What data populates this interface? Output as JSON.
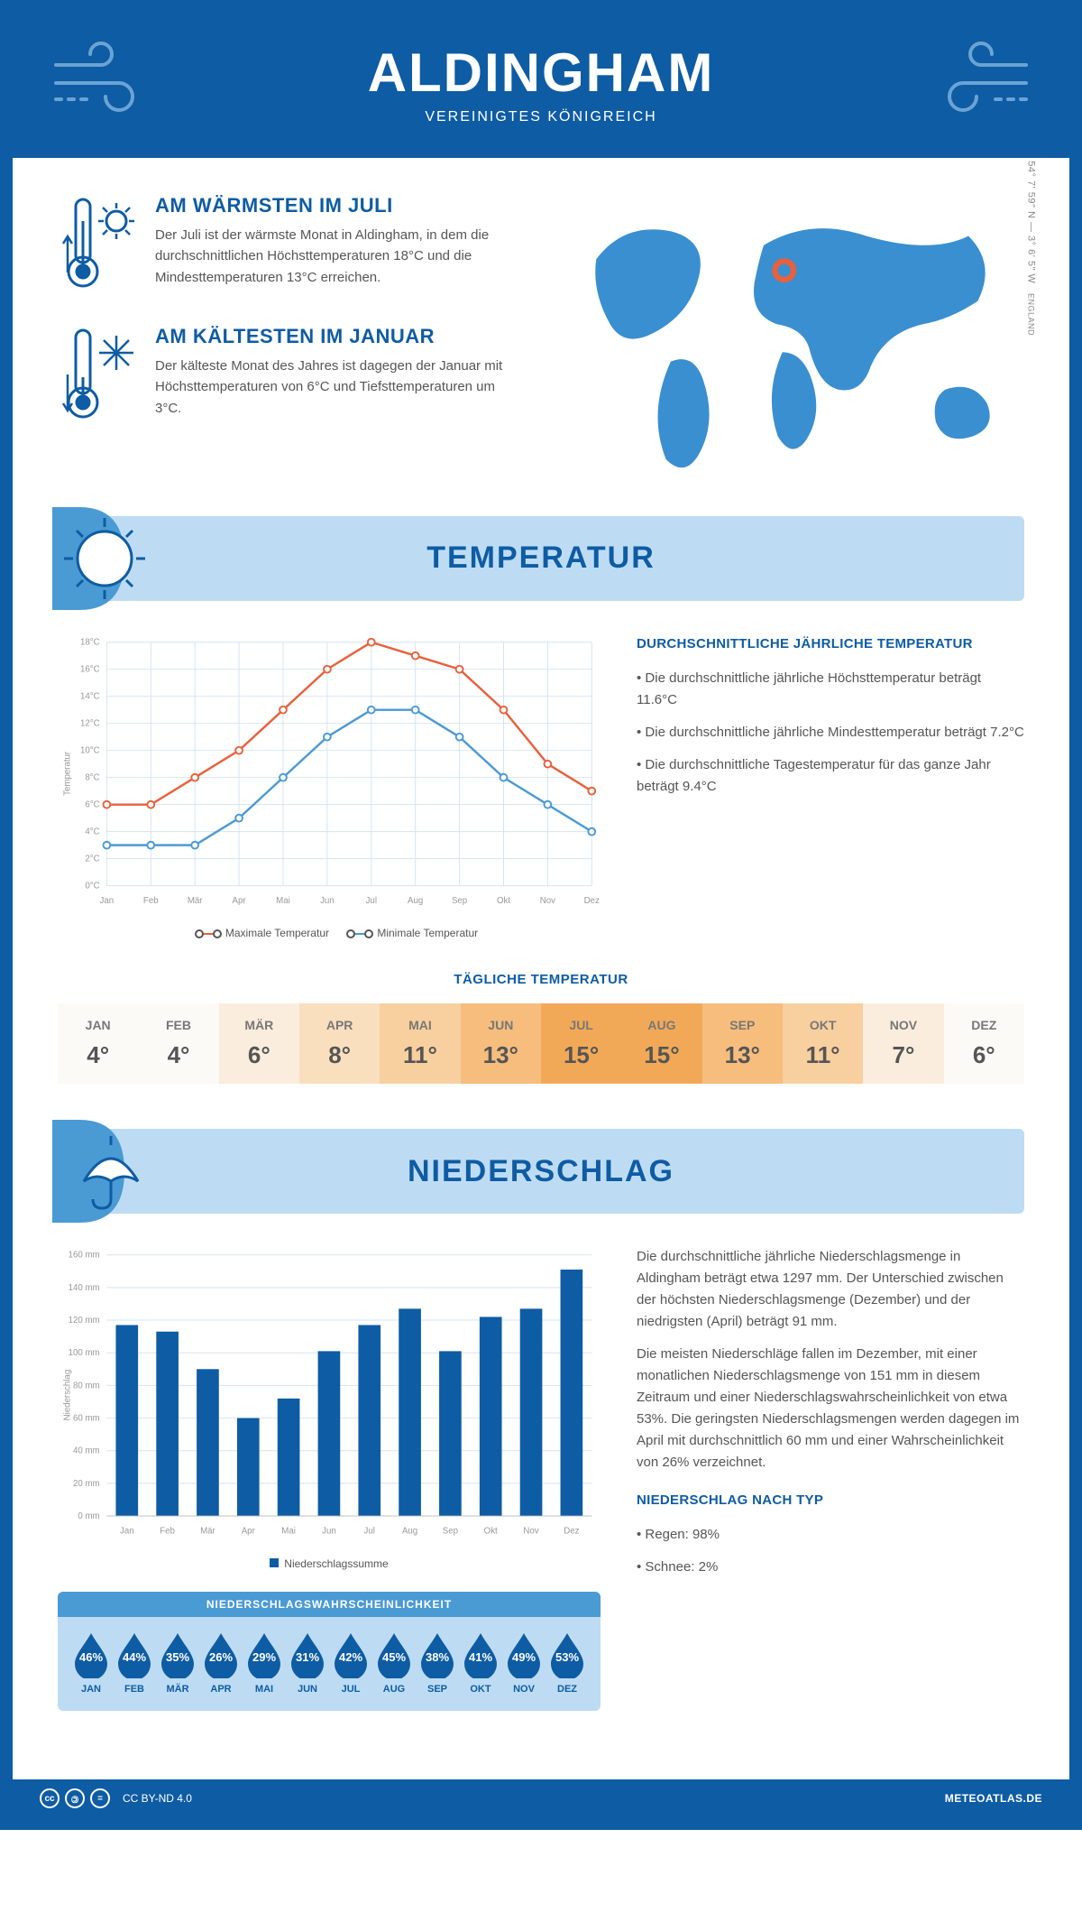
{
  "header": {
    "title": "ALDINGHAM",
    "subtitle": "VEREINIGTES KÖNIGREICH"
  },
  "coords": "54° 7' 59\" N — 3° 6' 5\" W",
  "region": "ENGLAND",
  "warmest": {
    "title": "AM WÄRMSTEN IM JULI",
    "body": "Der Juli ist der wärmste Monat in Aldingham, in dem die durchschnittlichen Höchsttemperaturen 18°C und die Mindesttemperaturen 13°C erreichen."
  },
  "coldest": {
    "title": "AM KÄLTESTEN IM JANUAR",
    "body": "Der kälteste Monat des Jahres ist dagegen der Januar mit Höchsttemperaturen von 6°C und Tiefsttemperaturen um 3°C."
  },
  "temperature": {
    "section_title": "TEMPERATUR",
    "chart": {
      "type": "line",
      "months": [
        "Jan",
        "Feb",
        "Mär",
        "Apr",
        "Mai",
        "Jun",
        "Jul",
        "Aug",
        "Sep",
        "Okt",
        "Nov",
        "Dez"
      ],
      "max_series": [
        6,
        6,
        8,
        10,
        13,
        16,
        18,
        17,
        16,
        13,
        9,
        7
      ],
      "min_series": [
        3,
        3,
        3,
        5,
        8,
        11,
        13,
        13,
        11,
        8,
        6,
        4
      ],
      "max_color": "#e8613c",
      "min_color": "#4a9ad4",
      "ylim": [
        0,
        18
      ],
      "ytick_step": 2,
      "ylabel": "Temperatur",
      "grid_color": "#d5e4f0",
      "axis_color": "#bbb",
      "legend_max": "Maximale Temperatur",
      "legend_min": "Minimale Temperatur"
    },
    "summary": {
      "title": "DURCHSCHNITTLICHE JÄHRLICHE TEMPERATUR",
      "p1": "Die durchschnittliche jährliche Höchsttemperatur beträgt 11.6°C",
      "p2": "Die durchschnittliche jährliche Mindesttemperatur beträgt 7.2°C",
      "p3": "Die durchschnittliche Tagestemperatur für das ganze Jahr beträgt 9.4°C"
    },
    "daily": {
      "title": "TÄGLICHE TEMPERATUR",
      "months": [
        "JAN",
        "FEB",
        "MÄR",
        "APR",
        "MAI",
        "JUN",
        "JUL",
        "AUG",
        "SEP",
        "OKT",
        "NOV",
        "DEZ"
      ],
      "values": [
        "4°",
        "4°",
        "6°",
        "8°",
        "11°",
        "13°",
        "15°",
        "15°",
        "13°",
        "11°",
        "7°",
        "6°"
      ],
      "colors": [
        "#fbfaf6",
        "#fbfaf6",
        "#fbeddd",
        "#fadfbf",
        "#f8cf9f",
        "#f6bd7d",
        "#f2a957",
        "#f2a957",
        "#f6bd7d",
        "#f8cf9f",
        "#fbeddd",
        "#fbfaf6"
      ]
    }
  },
  "precip": {
    "section_title": "NIEDERSCHLAG",
    "chart": {
      "type": "bar",
      "months": [
        "Jan",
        "Feb",
        "Mär",
        "Apr",
        "Mai",
        "Jun",
        "Jul",
        "Aug",
        "Sep",
        "Okt",
        "Nov",
        "Dez"
      ],
      "values": [
        117,
        113,
        90,
        60,
        72,
        101,
        117,
        127,
        101,
        122,
        127,
        151
      ],
      "bar_color": "#0e5ca3",
      "ylim": [
        0,
        160
      ],
      "ytick_step": 20,
      "ylabel": "Niederschlag",
      "grid_color": "#d5e4f0",
      "legend": "Niederschlagssumme"
    },
    "summary": {
      "p1": "Die durchschnittliche jährliche Niederschlagsmenge in Aldingham beträgt etwa 1297 mm. Der Unterschied zwischen der höchsten Niederschlagsmenge (Dezember) und der niedrigsten (April) beträgt 91 mm.",
      "p2": "Die meisten Niederschläge fallen im Dezember, mit einer monatlichen Niederschlagsmenge von 151 mm in diesem Zeitraum und einer Niederschlagswahrscheinlichkeit von etwa 53%. Die geringsten Niederschlagsmengen werden dagegen im April mit durchschnittlich 60 mm und einer Wahrscheinlichkeit von 26% verzeichnet.",
      "type_title": "NIEDERSCHLAG NACH TYP",
      "type1": "Regen: 98%",
      "type2": "Schnee: 2%"
    },
    "prob": {
      "title": "NIEDERSCHLAGSWAHRSCHEINLICHKEIT",
      "months": [
        "JAN",
        "FEB",
        "MÄR",
        "APR",
        "MAI",
        "JUN",
        "JUL",
        "AUG",
        "SEP",
        "OKT",
        "NOV",
        "DEZ"
      ],
      "values": [
        "46%",
        "44%",
        "35%",
        "26%",
        "29%",
        "31%",
        "42%",
        "45%",
        "38%",
        "41%",
        "49%",
        "53%"
      ],
      "drop_color": "#0e5ca3"
    }
  },
  "footer": {
    "license": "CC BY-ND 4.0",
    "brand": "METEOATLAS.DE"
  }
}
